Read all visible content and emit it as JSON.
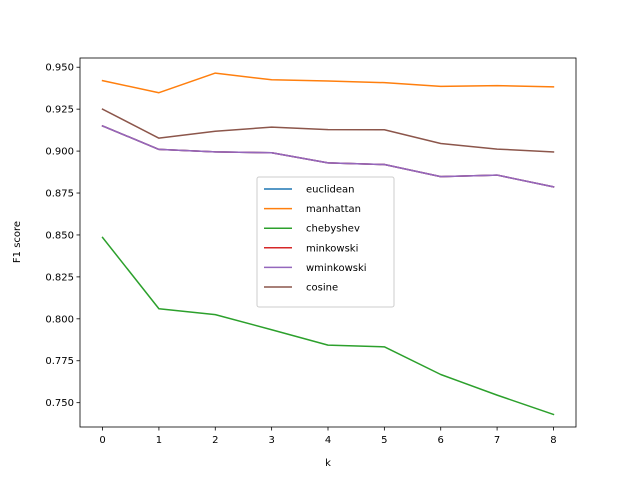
{
  "chart_data": {
    "type": "line",
    "title": "",
    "xlabel": "k",
    "ylabel": "F1 score",
    "x": [
      0,
      1,
      2,
      3,
      4,
      5,
      6,
      7,
      8
    ],
    "xticks": [
      "0",
      "1",
      "2",
      "3",
      "4",
      "5",
      "6",
      "7",
      "8"
    ],
    "yticks": [
      "0.750",
      "0.775",
      "0.800",
      "0.825",
      "0.850",
      "0.875",
      "0.900",
      "0.925",
      "0.950"
    ],
    "xlim": [
      -0.4,
      8.4
    ],
    "ylim": [
      0.7355,
      0.9555
    ],
    "grid": false,
    "legend_position": "center",
    "series": [
      {
        "name": "euclidean",
        "color": "#1f77b4",
        "values": [
          0.915,
          0.901,
          0.8995,
          0.899,
          0.893,
          0.892,
          0.8848,
          0.8857,
          0.8787
        ]
      },
      {
        "name": "manhattan",
        "color": "#ff7f0e",
        "values": [
          0.942,
          0.9348,
          0.9465,
          0.9425,
          0.9418,
          0.9408,
          0.9386,
          0.939,
          0.9383
        ]
      },
      {
        "name": "chebyshev",
        "color": "#2ca02c",
        "values": [
          0.8485,
          0.806,
          0.8025,
          0.7935,
          0.7843,
          0.7833,
          0.7668,
          0.7545,
          0.743
        ]
      },
      {
        "name": "minkowski",
        "color": "#d62728",
        "values": [
          0.915,
          0.901,
          0.8995,
          0.899,
          0.893,
          0.892,
          0.8848,
          0.8857,
          0.8787
        ]
      },
      {
        "name": "wminkowski",
        "color": "#9467bd",
        "values": [
          0.915,
          0.901,
          0.8995,
          0.899,
          0.893,
          0.892,
          0.8848,
          0.8857,
          0.8787
        ]
      },
      {
        "name": "cosine",
        "color": "#8c564b",
        "values": [
          0.925,
          0.9077,
          0.9118,
          0.9143,
          0.9128,
          0.9127,
          0.9045,
          0.9012,
          0.8995
        ]
      }
    ]
  }
}
